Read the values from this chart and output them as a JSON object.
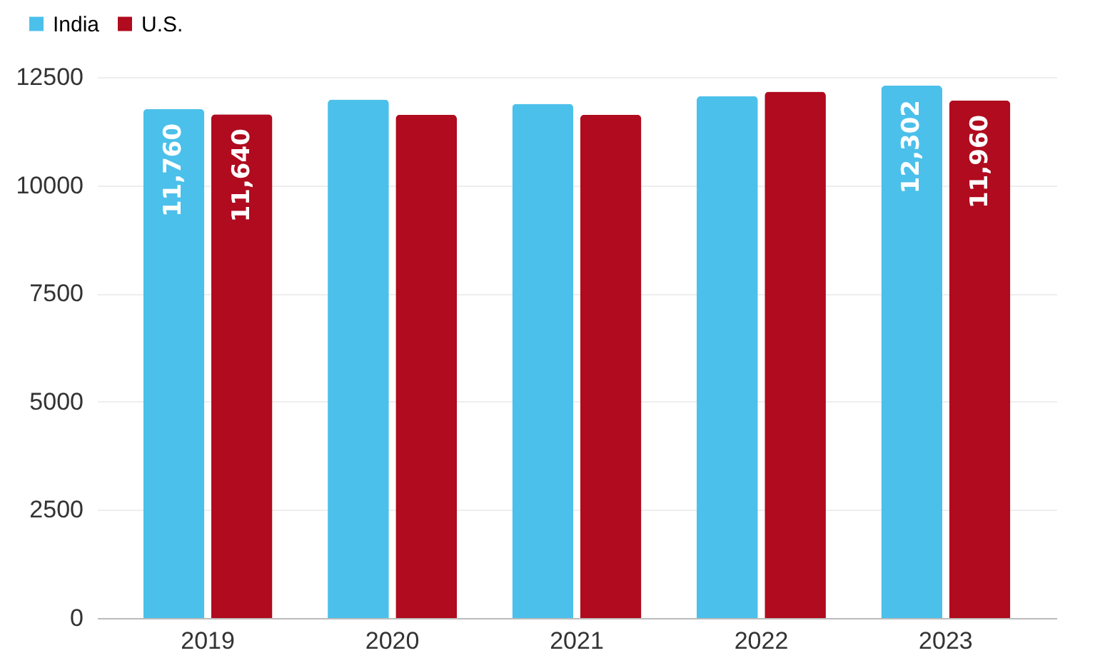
{
  "chart_data": {
    "type": "bar",
    "categories": [
      "2019",
      "2020",
      "2021",
      "2022",
      "2023"
    ],
    "series": [
      {
        "name": "India",
        "color": "#4bc0ea",
        "values": [
          11760,
          11980,
          11880,
          12060,
          12302
        ],
        "value_labels": [
          "11,760",
          null,
          null,
          null,
          "12,302"
        ]
      },
      {
        "name": "U.S.",
        "color": "#b00b1e",
        "values": [
          11640,
          11630,
          11630,
          12160,
          11960
        ],
        "value_labels": [
          "11,640",
          null,
          null,
          null,
          "11,960"
        ]
      }
    ],
    "ylim": [
      0,
      12500
    ],
    "yticks": [
      0,
      2500,
      5000,
      7500,
      10000,
      12500
    ],
    "grid": "y",
    "legend": "top left"
  }
}
